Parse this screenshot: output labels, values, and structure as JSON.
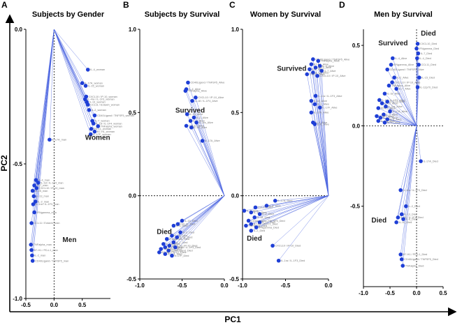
{
  "figure": {
    "x_axis_title": "PC1",
    "y_axis_title": "PC2",
    "colors": {
      "point": "#1f3fd6",
      "line": "#4a63e0",
      "axis": "#000000"
    }
  },
  "chart_data": [
    {
      "panel": "A",
      "title": "Subjects by Gender",
      "type": "scatter",
      "xlim": [
        -0.5,
        1.0
      ],
      "ylim": [
        -1.0,
        0.0
      ],
      "xticks": [
        "-0.5",
        "0.0",
        "0.5"
      ],
      "xtick_values": [
        -0.5,
        0.0,
        0.5
      ],
      "yticks": [
        "0.0",
        "-0.5",
        "-1.0"
      ],
      "ytick_values": [
        0.0,
        -0.5,
        -1.0
      ],
      "origin": [
        0.0,
        0.0
      ],
      "zero_line_x": true,
      "zero_line_y": false,
      "groups": [
        {
          "name": "Women",
          "label_at": [
            0.55,
            -0.41
          ]
        },
        {
          "name": "Men",
          "label_at": [
            0.15,
            -0.79
          ]
        }
      ],
      "points": [
        {
          "x": 0.6,
          "y": -0.15,
          "label": "IL-4_woman"
        },
        {
          "x": 0.5,
          "y": -0.2,
          "label": "IL-17A_woman"
        },
        {
          "x": 0.56,
          "y": -0.21,
          "label": "IL-15_woman"
        },
        {
          "x": 0.57,
          "y": -0.25,
          "label": "CXCL10 / IP-10_woman"
        },
        {
          "x": 0.55,
          "y": -0.26,
          "label": "IL-4ra / IL-1F3_woman"
        },
        {
          "x": 0.58,
          "y": -0.27,
          "label": "IL-13_woman"
        },
        {
          "x": 0.6,
          "y": -0.28,
          "label": "CCL11 / Eotaxin_woman"
        },
        {
          "x": 0.62,
          "y": -0.3,
          "label": "IL-2_woman"
        },
        {
          "x": 0.72,
          "y": -0.32,
          "label": "CD40Ligand / TNFSF5_woman"
        },
        {
          "x": 0.68,
          "y": -0.34,
          "label": "IL-7_woman"
        },
        {
          "x": 0.7,
          "y": -0.35,
          "label": "IL-18 / IL-1F4_woman"
        },
        {
          "x": 0.78,
          "y": -0.36,
          "label": "TNFalpha_woman"
        },
        {
          "x": 0.66,
          "y": -0.37,
          "label": "PD-L1_woman"
        },
        {
          "x": 0.72,
          "y": -0.38,
          "label": "B7-H1_woman"
        },
        {
          "x": 0.65,
          "y": -0.39,
          "label": "IL-17F_woman"
        },
        {
          "x": -0.08,
          "y": -0.41,
          "label": "IL-17A_man"
        },
        {
          "x": -0.32,
          "y": -0.56,
          "label": "IL-4_man"
        },
        {
          "x": -0.28,
          "y": -0.57,
          "label": "IL-18 / IL-1F4_man"
        },
        {
          "x": -0.35,
          "y": -0.58,
          "label": "IL-7_man"
        },
        {
          "x": -0.31,
          "y": -0.59,
          "label": "CXCL10 / IP-10_man"
        },
        {
          "x": -0.38,
          "y": -0.6,
          "label": "IL-15_man"
        },
        {
          "x": -0.36,
          "y": -0.62,
          "label": "IL-13_man"
        },
        {
          "x": -0.33,
          "y": -0.64,
          "label": "IL-2_man"
        },
        {
          "x": -0.37,
          "y": -0.65,
          "label": "IL-1ra / IL-1F3_man"
        },
        {
          "x": -0.35,
          "y": -0.68,
          "label": "IFNgamma_man"
        },
        {
          "x": -0.4,
          "y": -0.72,
          "label": "CCL11 / Eotaxin_man"
        },
        {
          "x": -0.41,
          "y": -0.8,
          "label": "TNFalpha_man"
        },
        {
          "x": -0.4,
          "y": -0.82,
          "label": "B7-H1 / PD-L1_man"
        },
        {
          "x": -0.39,
          "y": -0.84,
          "label": "IL-2_man"
        },
        {
          "x": -0.38,
          "y": -0.86,
          "label": "CD40Ligand / TNFSF5_man"
        }
      ]
    },
    {
      "panel": "B",
      "title": "Subjects by Survival",
      "type": "scatter",
      "xlim": [
        -1.0,
        0.0
      ],
      "ylim": [
        -0.5,
        1.0
      ],
      "xticks": [
        "-1.0",
        "-0.5",
        "0.0"
      ],
      "xtick_values": [
        -1.0,
        -0.5,
        0.0
      ],
      "yticks": [
        "1.0",
        "0.5",
        "0.0",
        "-0.5"
      ],
      "ytick_values": [
        1.0,
        0.5,
        0.0,
        -0.5
      ],
      "origin": [
        0.0,
        0.0
      ],
      "zero_line_x": false,
      "zero_line_y": true,
      "groups": [
        {
          "name": "Survived",
          "label_at": [
            -0.58,
            0.5
          ]
        },
        {
          "name": "Died",
          "label_at": [
            -0.8,
            -0.23
          ]
        }
      ],
      "points": [
        {
          "x": -0.43,
          "y": 0.68,
          "label": "CD40Ligand / TNFSF5_Alive"
        },
        {
          "x": -0.45,
          "y": 0.64,
          "label": "IL-4_Alive"
        },
        {
          "x": -0.46,
          "y": 0.63,
          "label": "TNFalpha_Alive"
        },
        {
          "x": -0.34,
          "y": 0.59,
          "label": "CXCL10 / IP-10_Alive"
        },
        {
          "x": -0.38,
          "y": 0.57,
          "label": "IL-18 / IL-1F4_Alive"
        },
        {
          "x": -0.44,
          "y": 0.49,
          "label": "IL-13_Alive"
        },
        {
          "x": -0.36,
          "y": 0.47,
          "label": "IL-2_Alive"
        },
        {
          "x": -0.4,
          "y": 0.45,
          "label": "IL-7_Alive"
        },
        {
          "x": -0.33,
          "y": 0.44,
          "label": "IL-1ra_Alive"
        },
        {
          "x": -0.45,
          "y": 0.42,
          "label": "CCL11_Alive"
        },
        {
          "x": -0.39,
          "y": 0.41,
          "label": "IL-15_Alive"
        },
        {
          "x": -0.26,
          "y": 0.33,
          "label": "IL-17A_Alive"
        },
        {
          "x": -0.5,
          "y": -0.15,
          "label": "IL-15_Died"
        },
        {
          "x": -0.55,
          "y": -0.17,
          "label": "CCL11_Died"
        },
        {
          "x": -0.6,
          "y": -0.18,
          "label": "IL-4_Died"
        },
        {
          "x": -0.52,
          "y": -0.22,
          "label": "IL-2_Died"
        },
        {
          "x": -0.62,
          "y": -0.24,
          "label": "IL-13_Died"
        },
        {
          "x": -0.56,
          "y": -0.25,
          "label": "IL-18_Died"
        },
        {
          "x": -0.68,
          "y": -0.26,
          "label": "IFNgamma_Died"
        },
        {
          "x": -0.6,
          "y": -0.28,
          "label": "IL-7_Died"
        },
        {
          "x": -0.72,
          "y": -0.29,
          "label": "IL-1ra_Died"
        },
        {
          "x": -0.65,
          "y": -0.3,
          "label": "CXCL10 / IP-10_Died"
        },
        {
          "x": -0.7,
          "y": -0.31,
          "label": "IL-17A_Died"
        },
        {
          "x": -0.58,
          "y": -0.31,
          "label": "IL-18 / IL-1F3_Died"
        },
        {
          "x": -0.75,
          "y": -0.32,
          "label": "TNFalpha_Died"
        },
        {
          "x": -0.66,
          "y": -0.33,
          "label": "CD40Ligand_Died"
        },
        {
          "x": -0.77,
          "y": -0.34,
          "label": "B7-H1 / PD-L1_Died"
        },
        {
          "x": -0.7,
          "y": -0.35,
          "label": "PD-L1_Died"
        },
        {
          "x": -0.62,
          "y": -0.36,
          "label": "IL-17F_Died"
        }
      ]
    },
    {
      "panel": "C",
      "title": "Women by Survival",
      "type": "scatter",
      "xlim": [
        -1.0,
        0.0
      ],
      "ylim": [
        -0.5,
        1.0
      ],
      "xticks": [
        "-1.0",
        "-0.5",
        "0.0"
      ],
      "xtick_values": [
        -1.0,
        -0.5,
        0.0
      ],
      "yticks": [
        "1.0",
        "0.5",
        "0.0",
        "-0.5"
      ],
      "ytick_values": [
        1.0,
        0.5,
        0.0,
        -0.5
      ],
      "origin": [
        0.0,
        0.0
      ],
      "zero_line_x": false,
      "zero_line_y": true,
      "groups": [
        {
          "name": "Survived",
          "label_at": [
            -0.6,
            0.75
          ]
        },
        {
          "name": "Died",
          "label_at": [
            -0.95,
            -0.27
          ]
        }
      ],
      "points": [
        {
          "x": -0.18,
          "y": 0.82,
          "label": "CD40Ligand / TNFSF5_Alive"
        },
        {
          "x": -0.12,
          "y": 0.81,
          "label": "TNFalpha_Alive"
        },
        {
          "x": -0.2,
          "y": 0.79,
          "label": "B7-H1_Alive"
        },
        {
          "x": -0.1,
          "y": 0.78,
          "label": "IL-4_Alive"
        },
        {
          "x": -0.15,
          "y": 0.77,
          "label": "IL-13_Alive"
        },
        {
          "x": -0.22,
          "y": 0.76,
          "label": "IL-2_Alive"
        },
        {
          "x": -0.08,
          "y": 0.75,
          "label": "IL-7_Alive"
        },
        {
          "x": -0.18,
          "y": 0.74,
          "label": "IL-15_Alive"
        },
        {
          "x": -0.25,
          "y": 0.73,
          "label": "CCL11_Alive"
        },
        {
          "x": -0.13,
          "y": 0.72,
          "label": "CXCL10 / IP-10_Alive"
        },
        {
          "x": -0.15,
          "y": 0.6,
          "label": "IL-1ra / IL-1F3_Alive"
        },
        {
          "x": -0.2,
          "y": 0.57,
          "label": "IL-18_Alive"
        },
        {
          "x": -0.16,
          "y": 0.55,
          "label": "IL-2_Alive"
        },
        {
          "x": -0.1,
          "y": 0.53,
          "label": "IL-17F_Alive"
        },
        {
          "x": -0.2,
          "y": 0.5,
          "label": "IL-17A_Alive"
        },
        {
          "x": -0.18,
          "y": 0.44,
          "label": "IL-4_Alive"
        },
        {
          "x": -0.16,
          "y": 0.43,
          "label": "IL-6_Alive"
        },
        {
          "x": -0.62,
          "y": -0.03,
          "label": "IL-17A_Died"
        },
        {
          "x": -0.72,
          "y": -0.06,
          "label": "IL-4_Died"
        },
        {
          "x": -0.85,
          "y": -0.07,
          "label": "CCL11_Died"
        },
        {
          "x": -0.98,
          "y": -0.09,
          "label": "IL-7_Died"
        },
        {
          "x": -0.9,
          "y": -0.1,
          "label": "IL-15_Died"
        },
        {
          "x": -0.8,
          "y": -0.11,
          "label": "IL-2_Died"
        },
        {
          "x": -0.86,
          "y": -0.13,
          "label": "IL-18_Died"
        },
        {
          "x": -0.93,
          "y": -0.15,
          "label": "CD40Ligand / TNFSF5_Died"
        },
        {
          "x": -0.8,
          "y": -0.16,
          "label": "IL-13_Died"
        },
        {
          "x": -0.9,
          "y": -0.17,
          "label": "B7-H1 / PD-L1_Died"
        },
        {
          "x": -0.96,
          "y": -0.18,
          "label": "TNFalpha_Died"
        },
        {
          "x": -0.84,
          "y": -0.19,
          "label": "IFNgamma_Died"
        },
        {
          "x": -0.9,
          "y": -0.21,
          "label": "IL-2_Died"
        },
        {
          "x": -0.65,
          "y": -0.3,
          "label": "CXCL10 / IP-10_Died"
        },
        {
          "x": -0.58,
          "y": -0.39,
          "label": "IL-1ra / IL-1F3_Died"
        }
      ]
    },
    {
      "panel": "D",
      "title": "Men by Survival",
      "type": "scatter",
      "xlim": [
        -1.0,
        0.5
      ],
      "ylim": [
        -1.0,
        0.6
      ],
      "xticks": [
        "-1.0",
        "-0.5",
        "0.0",
        "0.5"
      ],
      "xtick_values": [
        -1.0,
        -0.5,
        0.0,
        0.5
      ],
      "yticks": [
        "0.5",
        "0.0",
        "-0.5"
      ],
      "ytick_values": [
        0.5,
        0.0,
        -0.5
      ],
      "origin": [
        0.0,
        0.0
      ],
      "zero_line_x": true,
      "zero_line_y": true,
      "groups": [
        {
          "name": "Survived",
          "label_at": [
            -0.72,
            0.5
          ]
        },
        {
          "name": "Died",
          "label_at": [
            0.08,
            0.56
          ]
        },
        {
          "name": "Died",
          "label_at": [
            -0.85,
            -0.6
          ]
        }
      ],
      "points": [
        {
          "x": -0.45,
          "y": 0.42,
          "label": "IL-4_Alive"
        },
        {
          "x": -0.48,
          "y": 0.38,
          "label": "IFNgamma_Alive"
        },
        {
          "x": -0.55,
          "y": 0.35,
          "label": "CD40Ligand / TNFSF5_Alive"
        },
        {
          "x": -0.42,
          "y": 0.3,
          "label": "IL-2_Alive"
        },
        {
          "x": -0.46,
          "y": 0.27,
          "label": "CXCL10 / IP-10_Alive"
        },
        {
          "x": -0.52,
          "y": 0.25,
          "label": "TNFalpha_Alive"
        },
        {
          "x": -0.38,
          "y": 0.23,
          "label": "IL-7_Alive"
        },
        {
          "x": -0.6,
          "y": 0.2,
          "label": "IL-18_Alive"
        },
        {
          "x": -0.7,
          "y": 0.16,
          "label": "IL-13 / IL-1F3_Alive"
        },
        {
          "x": -0.55,
          "y": 0.15,
          "label": "CCL11_Alive"
        },
        {
          "x": -0.65,
          "y": 0.14,
          "label": "IL-15_Alive"
        },
        {
          "x": -0.58,
          "y": 0.12,
          "label": "IL-1ra_Alive"
        },
        {
          "x": -0.72,
          "y": 0.11,
          "label": "PD-L1_Alive"
        },
        {
          "x": -0.5,
          "y": 0.09,
          "label": "IL-17A_Alive"
        },
        {
          "x": -0.62,
          "y": 0.07,
          "label": "IL-2_Alive"
        },
        {
          "x": -0.75,
          "y": 0.06,
          "label": "B7-H1_Alive"
        },
        {
          "x": -0.68,
          "y": 0.05,
          "label": "IL-17F_Alive"
        },
        {
          "x": -0.55,
          "y": 0.04,
          "label": "IL-6_Alive"
        },
        {
          "x": -0.72,
          "y": 0.03,
          "label": "IL-4ra_Alive"
        },
        {
          "x": -0.6,
          "y": 0.02,
          "label": "IL-10_Alive"
        },
        {
          "x": 0.02,
          "y": 0.51,
          "label": "CXCL10_Died"
        },
        {
          "x": 0.0,
          "y": 0.48,
          "label": "IFNgamma_Died"
        },
        {
          "x": 0.03,
          "y": 0.45,
          "label": "IL-7_Died"
        },
        {
          "x": 0.01,
          "y": 0.42,
          "label": "IL-4_Died"
        },
        {
          "x": 0.04,
          "y": 0.38,
          "label": "CCL11_Died"
        },
        {
          "x": 0.05,
          "y": 0.3,
          "label": "IL-15_Died"
        },
        {
          "x": 0.02,
          "y": 0.24,
          "label": "IL-12p70_Died"
        },
        {
          "x": 0.08,
          "y": -0.22,
          "label": "IL-17A_Died"
        },
        {
          "x": -0.3,
          "y": -0.4,
          "label": "IL-1ra / IL-1F3_Died"
        },
        {
          "x": -0.2,
          "y": -0.5,
          "label": "IL-2_Died"
        },
        {
          "x": -0.28,
          "y": -0.55,
          "label": "IL-13_Died"
        },
        {
          "x": -0.35,
          "y": -0.57,
          "label": "IL-18 / IL-1F4_Died"
        },
        {
          "x": -0.25,
          "y": -0.58,
          "label": "IL-6_Died"
        },
        {
          "x": -0.38,
          "y": -0.6,
          "label": "IL-10_Died"
        },
        {
          "x": -0.3,
          "y": -0.8,
          "label": "B7-H1 / PD-L1_Died"
        },
        {
          "x": -0.28,
          "y": -0.83,
          "label": "CD40Ligand / TNFSF5_Died"
        },
        {
          "x": -0.26,
          "y": -0.87,
          "label": "TNFalpha_Died"
        }
      ]
    }
  ]
}
